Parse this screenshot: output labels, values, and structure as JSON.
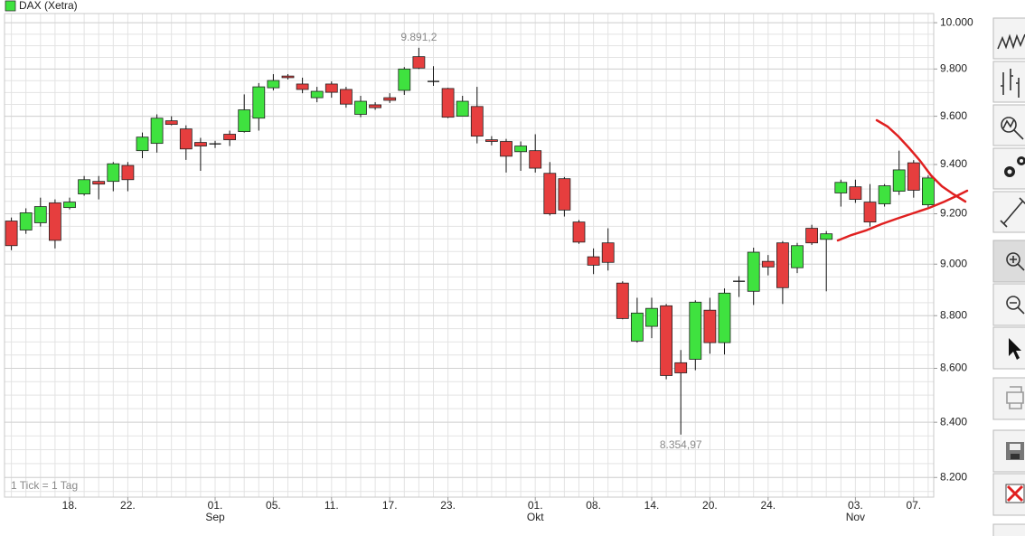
{
  "chart_data": {
    "type": "candlestick",
    "note": "1 Tick = 1 Tag",
    "log_scale": true,
    "grid": true,
    "ylim": [
      8130,
      10040
    ],
    "yticks": [
      {
        "value": 10000,
        "label": "10.000"
      },
      {
        "value": 9800,
        "label": "9.800"
      },
      {
        "value": 9600,
        "label": "9.600"
      },
      {
        "value": 9400,
        "label": "9.400"
      },
      {
        "value": 9200,
        "label": "9.200"
      },
      {
        "value": 9000,
        "label": "9.000"
      },
      {
        "value": 8800,
        "label": "8.800"
      },
      {
        "value": 8600,
        "label": "8.600"
      },
      {
        "value": 8400,
        "label": "8.400"
      },
      {
        "value": 8200,
        "label": "8.200"
      }
    ],
    "yminorticks": [
      8150,
      8200,
      8250,
      8300,
      8350,
      8400,
      8450,
      8500,
      8550,
      8600,
      8650,
      8700,
      8750,
      8800,
      8850,
      8900,
      8950,
      9000,
      9050,
      9100,
      9150,
      9200,
      9250,
      9300,
      9350,
      9400,
      9450,
      9500,
      9550,
      9600,
      9650,
      9700,
      9750,
      9800,
      9850,
      9900,
      9950,
      10000
    ],
    "categories": [
      null,
      null,
      null,
      null,
      "18.",
      null,
      null,
      null,
      "22.",
      null,
      null,
      null,
      null,
      null,
      "01.",
      null,
      null,
      null,
      "05.",
      null,
      null,
      null,
      "11.",
      null,
      null,
      null,
      "17.",
      null,
      null,
      null,
      "23.",
      null,
      null,
      null,
      null,
      null,
      "01.",
      null,
      null,
      null,
      "08.",
      null,
      null,
      null,
      "14.",
      null,
      null,
      null,
      "20.",
      null,
      null,
      null,
      "24.",
      null,
      null,
      null,
      null,
      null,
      "03.",
      null,
      null,
      null,
      "07.",
      null
    ],
    "months": [
      null,
      null,
      null,
      null,
      null,
      null,
      null,
      null,
      null,
      null,
      null,
      null,
      null,
      null,
      "Sep",
      null,
      null,
      null,
      null,
      null,
      null,
      null,
      null,
      null,
      null,
      null,
      null,
      null,
      null,
      null,
      null,
      null,
      null,
      null,
      null,
      null,
      "Okt",
      null,
      null,
      null,
      null,
      null,
      null,
      null,
      null,
      null,
      null,
      null,
      null,
      null,
      null,
      null,
      null,
      null,
      null,
      null,
      null,
      null,
      "Nov",
      null,
      null,
      null,
      null,
      null
    ],
    "series": [
      {
        "name": "DAX (Xetra)",
        "up_color": "#3fe23f",
        "down_color": "#e63e3e",
        "open": [
          9171,
          9135,
          9164,
          9244,
          9225,
          9280,
          9331,
          9331,
          9396,
          9457,
          9487,
          9581,
          9547,
          9491,
          9485,
          9525,
          9536,
          9592,
          9720,
          9770,
          9736,
          9678,
          9736,
          9713,
          9608,
          9648,
          9678,
          9709,
          9853,
          9747,
          9717,
          9600,
          9641,
          9502,
          9495,
          9453,
          9457,
          9364,
          9342,
          9167,
          9029,
          9084,
          8926,
          8703,
          8759,
          8838,
          8621,
          8634,
          8821,
          8697,
          8933,
          8894,
          9011,
          9084,
          8986,
          9142,
          9098,
          9284,
          9309,
          9247,
          9240,
          9291,
          9407,
          9236
        ],
        "high": [
          9185,
          9222,
          9265,
          9258,
          9265,
          9353,
          9353,
          9410,
          9410,
          9532,
          9608,
          9600,
          9562,
          9510,
          9498,
          9540,
          9692,
          9740,
          9778,
          9778,
          9763,
          9724,
          9747,
          9724,
          9686,
          9659,
          9697,
          9808,
          9891.2,
          9812,
          9720,
          9686,
          9724,
          9517,
          9506,
          9495,
          9525,
          9410,
          9349,
          9175,
          9062,
          9142,
          8933,
          8869,
          8869,
          8845,
          8669,
          8859,
          8869,
          8905,
          8953,
          9065,
          9036,
          9091,
          9084,
          9156,
          9131,
          9338,
          9338,
          9320,
          9320,
          9457,
          9418,
          9356
        ],
        "low": [
          9055,
          9120,
          9149,
          9062,
          9218,
          9273,
          9258,
          9291,
          9291,
          9426,
          9449,
          9562,
          9419,
          9374,
          9468,
          9476,
          9532,
          9540,
          9709,
          9755,
          9697,
          9659,
          9678,
          9636,
          9596,
          9627,
          9656,
          9690,
          9800,
          9728,
          9592,
          9600,
          9487,
          9479,
          9367,
          9374,
          9367,
          9193,
          9189,
          9080,
          8961,
          8975,
          8786,
          8697,
          8714,
          8559,
          8354.97,
          8593,
          8655,
          8652,
          8872,
          8841,
          8956,
          8845,
          8965,
          9076,
          8894,
          9229,
          9244,
          9149,
          9229,
          9276,
          9265,
          9225
        ],
        "close": [
          9073,
          9204,
          9229,
          9094,
          9247,
          9338,
          9320,
          9403,
          9338,
          9513,
          9592,
          9566,
          9464,
          9476,
          9485,
          9502,
          9627,
          9724,
          9751,
          9763,
          9713,
          9705,
          9701,
          9651,
          9663,
          9636,
          9667,
          9800,
          9804,
          9747,
          9596,
          9663,
          9517,
          9495,
          9434,
          9476,
          9385,
          9200,
          9215,
          9087,
          8996,
          9007,
          8789,
          8810,
          8828,
          8573,
          8583,
          8852,
          8697,
          8887,
          8933,
          9047,
          8989,
          8908,
          9073,
          9084,
          9120,
          9327,
          9258,
          9167,
          9313,
          9378,
          9295,
          9345
        ],
        "high_labels": [
          null,
          null,
          null,
          null,
          null,
          null,
          null,
          null,
          null,
          null,
          null,
          null,
          null,
          null,
          null,
          null,
          null,
          null,
          null,
          null,
          null,
          null,
          null,
          null,
          null,
          null,
          null,
          null,
          "9.891,2",
          null,
          null,
          null,
          null,
          null,
          null,
          null,
          null,
          null,
          null,
          null,
          null,
          null,
          null,
          null,
          null,
          null,
          null,
          null,
          null,
          null,
          null,
          null,
          null,
          null,
          null,
          null,
          null,
          null,
          null,
          null,
          null,
          null,
          null,
          null
        ],
        "low_labels": [
          null,
          null,
          null,
          null,
          null,
          null,
          null,
          null,
          null,
          null,
          null,
          null,
          null,
          null,
          null,
          null,
          null,
          null,
          null,
          null,
          null,
          null,
          null,
          null,
          null,
          null,
          null,
          null,
          null,
          null,
          null,
          null,
          null,
          null,
          null,
          null,
          null,
          null,
          null,
          null,
          null,
          null,
          null,
          null,
          null,
          null,
          "8.354,97",
          null,
          null,
          null,
          null,
          null,
          null,
          null,
          null,
          null,
          null,
          null,
          null,
          null,
          null,
          null,
          null,
          null
        ]
      }
    ]
  }
}
